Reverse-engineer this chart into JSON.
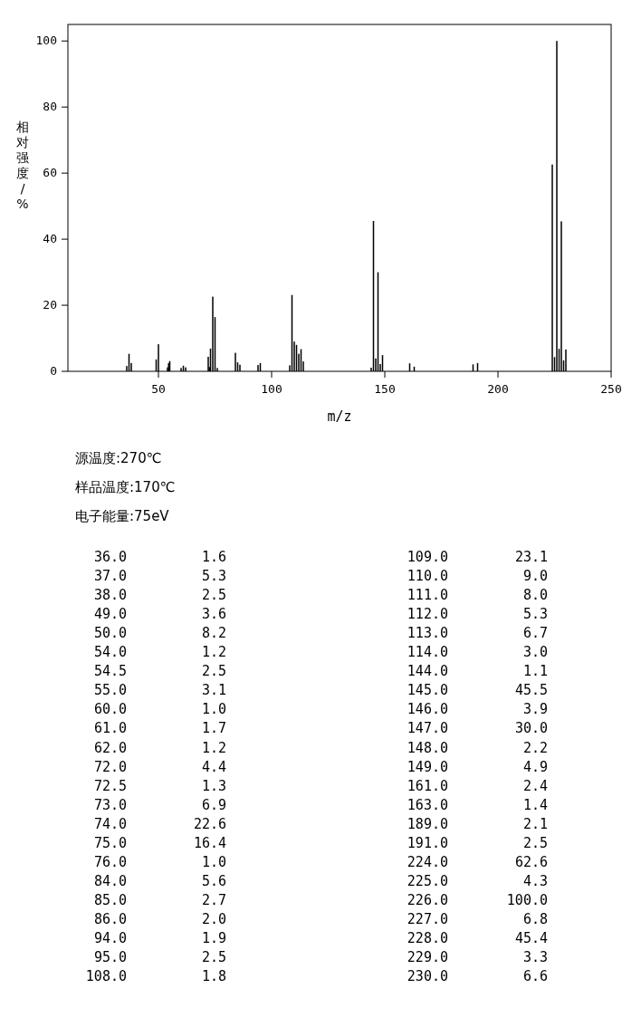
{
  "chart_data": [
    {
      "type": "bar",
      "xlabel": "m/z",
      "ylabel": "相对强度/%",
      "annotations": [
        "源温度:270℃",
        "样品温度:170℃",
        "电子能量:75eV"
      ],
      "x": [
        36.0,
        37.0,
        38.0,
        49.0,
        50.0,
        54.0,
        54.5,
        55.0,
        60.0,
        61.0,
        62.0,
        72.0,
        72.5,
        73.0,
        74.0,
        75.0,
        76.0,
        84.0,
        85.0,
        86.0,
        94.0,
        95.0,
        108.0,
        109.0,
        110.0,
        111.0,
        112.0,
        113.0,
        114.0,
        144.0,
        145.0,
        146.0,
        147.0,
        148.0,
        149.0,
        161.0,
        163.0,
        189.0,
        191.0,
        224.0,
        225.0,
        226.0,
        227.0,
        228.0,
        229.0,
        230.0
      ],
      "values": [
        1.6,
        5.3,
        2.5,
        3.6,
        8.2,
        1.2,
        2.5,
        3.1,
        1.0,
        1.7,
        1.2,
        4.4,
        1.3,
        6.9,
        22.6,
        16.4,
        1.0,
        5.6,
        2.7,
        2.0,
        1.9,
        2.5,
        1.8,
        23.1,
        9.0,
        8.0,
        5.3,
        6.7,
        3.0,
        1.1,
        45.5,
        3.9,
        30.0,
        2.2,
        4.9,
        2.4,
        1.4,
        2.1,
        2.5,
        62.6,
        4.3,
        100.0,
        6.8,
        45.4,
        3.3,
        6.6
      ],
      "color": "#000000",
      "xlim": [
        10,
        250
      ],
      "xticks": [
        50,
        100,
        150,
        200,
        250
      ],
      "ylim": [
        0,
        105
      ],
      "yticks": [
        0,
        20,
        40,
        60,
        80,
        100
      ]
    },
    {
      "type": "other",
      "categories": [
        "36.0",
        "37.0",
        "38.0",
        "49.0",
        "50.0",
        "54.0",
        "54.5",
        "55.0",
        "60.0",
        "61.0",
        "62.0",
        "72.0",
        "72.5",
        "73.0",
        "74.0",
        "75.0",
        "76.0",
        "84.0",
        "85.0",
        "86.0",
        "94.0",
        "95.0",
        "108.0",
        "109.0",
        "110.0",
        "111.0",
        "112.0",
        "113.0",
        "114.0",
        "144.0",
        "145.0",
        "146.0",
        "147.0",
        "148.0",
        "149.0",
        "161.0",
        "163.0",
        "189.0",
        "191.0",
        "224.0",
        "225.0",
        "226.0",
        "227.0",
        "228.0",
        "229.0",
        "230.0"
      ],
      "values": [
        1.6,
        5.3,
        2.5,
        3.6,
        8.2,
        1.2,
        2.5,
        3.1,
        1.0,
        1.7,
        1.2,
        4.4,
        1.3,
        6.9,
        22.6,
        16.4,
        1.0,
        5.6,
        2.7,
        2.0,
        1.9,
        2.5,
        1.8,
        23.1,
        9.0,
        8.0,
        5.3,
        6.7,
        3.0,
        1.1,
        45.5,
        3.9,
        30.0,
        2.2,
        4.9,
        2.4,
        1.4,
        2.1,
        2.5,
        62.6,
        4.3,
        100.0,
        6.8,
        45.4,
        3.3,
        6.6
      ],
      "value_labels": [
        "1.6",
        "5.3",
        "2.5",
        "3.6",
        "8.2",
        "1.2",
        "2.5",
        "3.1",
        "1.0",
        "1.7",
        "1.2",
        "4.4",
        "1.3",
        "6.9",
        "22.6",
        "16.4",
        "1.0",
        "5.6",
        "2.7",
        "2.0",
        "1.9",
        "2.5",
        "1.8",
        "23.1",
        "9.0",
        "8.0",
        "5.3",
        "6.7",
        "3.0",
        "1.1",
        "45.5",
        "3.9",
        "30.0",
        "2.2",
        "4.9",
        "2.4",
        "1.4",
        "2.1",
        "2.5",
        "62.6",
        "4.3",
        "100.0",
        "6.8",
        "45.4",
        "3.3",
        "6.6"
      ]
    }
  ]
}
